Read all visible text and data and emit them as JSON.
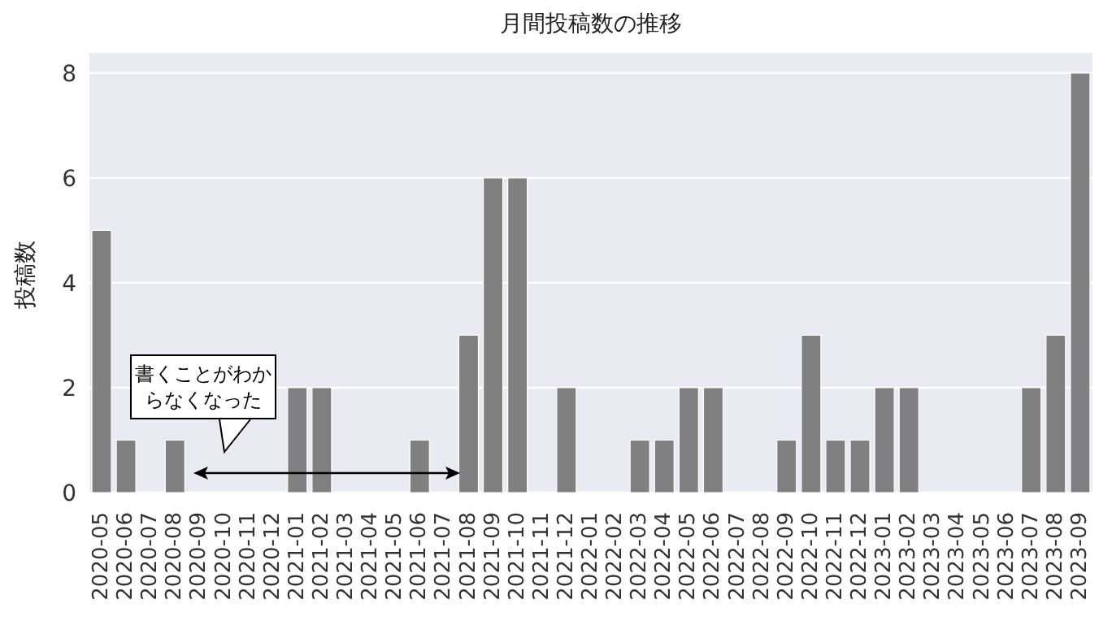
{
  "chart_data": {
    "type": "bar",
    "title": "月間投稿数の推移",
    "ylabel": "投稿数",
    "categories": [
      "2020-05",
      "2020-06",
      "2020-07",
      "2020-08",
      "2020-09",
      "2020-10",
      "2020-11",
      "2020-12",
      "2021-01",
      "2021-02",
      "2021-03",
      "2021-04",
      "2021-05",
      "2021-06",
      "2021-07",
      "2021-08",
      "2021-09",
      "2021-10",
      "2021-11",
      "2021-12",
      "2022-01",
      "2022-02",
      "2022-03",
      "2022-04",
      "2022-05",
      "2022-06",
      "2022-07",
      "2022-08",
      "2022-09",
      "2022-10",
      "2022-11",
      "2022-12",
      "2023-01",
      "2023-02",
      "2023-03",
      "2023-04",
      "2023-05",
      "2023-06",
      "2023-07",
      "2023-08",
      "2023-09"
    ],
    "values": [
      5,
      1,
      0,
      1,
      0,
      0,
      0,
      0,
      2,
      2,
      0,
      0,
      0,
      1,
      0,
      3,
      6,
      6,
      0,
      2,
      0,
      0,
      1,
      1,
      2,
      2,
      0,
      0,
      1,
      3,
      1,
      1,
      2,
      2,
      0,
      0,
      0,
      0,
      2,
      3,
      8
    ],
    "color": "#808080",
    "ylim": [
      0,
      8.4
    ],
    "yticks": [
      0,
      2,
      4,
      6,
      8
    ],
    "grid": "y",
    "annotations": [
      "書くことがわからなくなった"
    ]
  }
}
